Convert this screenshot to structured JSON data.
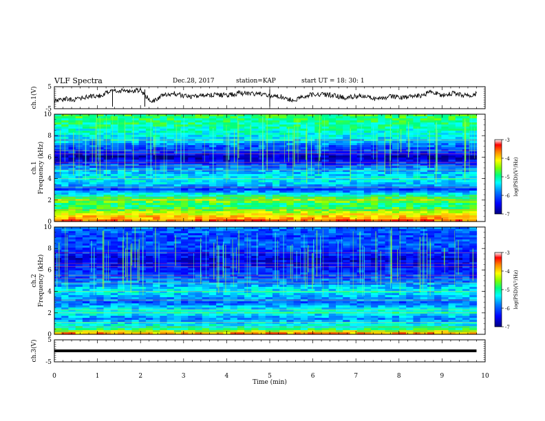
{
  "header": {
    "title": "VLF Spectra",
    "date": "Dec.28, 2017",
    "station": "station=KAP",
    "start": "start  UT =   18: 30: 1"
  },
  "chart_data": [
    {
      "type": "line",
      "title": "",
      "ylabel": "ch.1(V)",
      "xlabel": "",
      "xlim": [
        0,
        10
      ],
      "ylim": [
        -5,
        5
      ],
      "yticks": [
        "5",
        "-5"
      ],
      "series": [
        {
          "x": [
            0,
            0.25,
            0.5,
            0.75,
            1.0,
            1.25,
            1.5,
            1.75,
            2.0,
            2.25,
            2.5,
            2.75,
            3.0,
            3.25,
            3.5,
            3.75,
            4.0,
            4.25,
            4.5,
            4.75,
            5.0,
            5.25,
            5.5,
            5.75,
            6.0,
            6.25,
            6.5,
            6.75,
            7.0,
            7.25,
            7.5,
            7.75,
            8.0,
            8.25,
            8.5,
            8.75,
            9.0,
            9.25,
            9.5,
            9.75,
            9.8
          ],
          "values": [
            -1.5,
            -0.5,
            -1.0,
            0.5,
            0.5,
            2.5,
            3.0,
            3.0,
            3.5,
            -2.0,
            1.0,
            2.0,
            1.0,
            0.5,
            1.0,
            1.5,
            1.0,
            2.0,
            2.0,
            1.5,
            1.0,
            0.5,
            -1.0,
            0.0,
            1.5,
            1.5,
            1.0,
            0.0,
            0.5,
            1.0,
            -1.0,
            0.5,
            0.0,
            0.5,
            1.0,
            2.5,
            1.0,
            2.0,
            1.0,
            1.5,
            2.0
          ]
        }
      ]
    },
    {
      "type": "heatmap",
      "title": "",
      "ylabel": "ch.1",
      "ylabel2": "Frequency (kHz)",
      "xlim": [
        0,
        10
      ],
      "ylim": [
        0,
        10
      ],
      "yticks": [
        "0",
        "2",
        "4",
        "6",
        "8",
        "10"
      ],
      "colorbar": {
        "label": "log(PSD)(V²/Hz)",
        "range": [
          -7,
          -3
        ],
        "ticks": [
          "-3",
          "-4",
          "-5",
          "-6",
          "-7"
        ]
      },
      "frequency_profile": [
        [
          0.0,
          -3.5
        ],
        [
          0.5,
          -4.0
        ],
        [
          1.0,
          -4.5
        ],
        [
          1.5,
          -5.0
        ],
        [
          2.0,
          -4.5
        ],
        [
          2.5,
          -5.2
        ],
        [
          3.0,
          -6.2
        ],
        [
          3.5,
          -5.5
        ],
        [
          4.0,
          -5.3
        ],
        [
          4.5,
          -5.5
        ],
        [
          5.0,
          -5.8
        ],
        [
          5.5,
          -6.3
        ],
        [
          6.0,
          -6.8
        ],
        [
          6.5,
          -6.2
        ],
        [
          7.0,
          -6.0
        ],
        [
          7.5,
          -5.5
        ],
        [
          8.0,
          -5.3
        ],
        [
          8.5,
          -5.2
        ],
        [
          9.0,
          -5.0
        ],
        [
          9.5,
          -4.9
        ],
        [
          10.0,
          -4.8
        ]
      ]
    },
    {
      "type": "heatmap",
      "title": "",
      "ylabel": "ch.2",
      "ylabel2": "Frequency (kHz)",
      "xlim": [
        0,
        10
      ],
      "ylim": [
        0,
        10
      ],
      "yticks": [
        "0",
        "2",
        "4",
        "6",
        "8",
        "10"
      ],
      "colorbar": {
        "label": "log(PSD)(V²/Hz)",
        "range": [
          -7,
          -3
        ],
        "ticks": [
          "-3",
          "-4",
          "-5",
          "-6",
          "-7"
        ]
      },
      "frequency_profile": [
        [
          0.0,
          -3.5
        ],
        [
          0.5,
          -5.0
        ],
        [
          1.0,
          -5.4
        ],
        [
          1.5,
          -5.8
        ],
        [
          2.0,
          -5.2
        ],
        [
          2.5,
          -5.5
        ],
        [
          3.0,
          -6.0
        ],
        [
          3.5,
          -5.6
        ],
        [
          4.0,
          -5.3
        ],
        [
          4.5,
          -5.6
        ],
        [
          5.0,
          -5.9
        ],
        [
          5.5,
          -6.1
        ],
        [
          6.0,
          -6.3
        ],
        [
          6.5,
          -6.4
        ],
        [
          7.0,
          -6.6
        ],
        [
          7.5,
          -6.3
        ],
        [
          8.0,
          -6.1
        ],
        [
          8.5,
          -6.0
        ],
        [
          9.0,
          -6.1
        ],
        [
          9.5,
          -6.0
        ],
        [
          10.0,
          -5.9
        ]
      ]
    },
    {
      "type": "line",
      "title": "",
      "ylabel": "ch.3(V)",
      "xlabel": "Time  (min)",
      "xlim": [
        0,
        10
      ],
      "ylim": [
        -5,
        5
      ],
      "yticks": [
        "5",
        "-5"
      ],
      "xticks": [
        "0",
        "1",
        "2",
        "3",
        "4",
        "5",
        "6",
        "7",
        "8",
        "9",
        "10"
      ],
      "series": [
        {
          "x": [
            0,
            9.8
          ],
          "values": [
            0,
            0
          ]
        }
      ]
    }
  ]
}
